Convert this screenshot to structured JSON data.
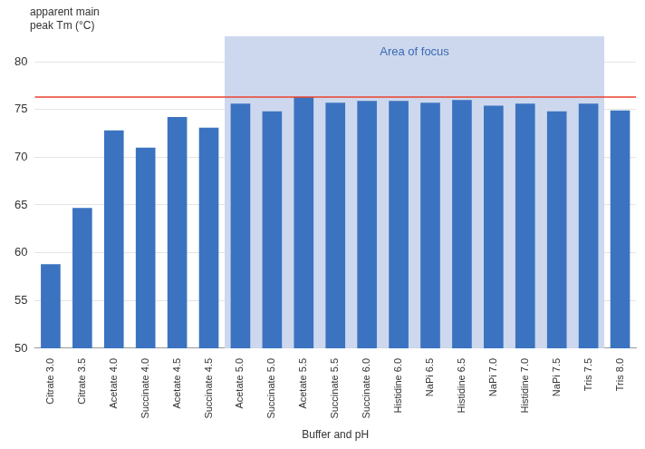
{
  "chart_data": {
    "type": "bar",
    "y_label": "apparent main peak Tm (°C)",
    "x_label": "Buffer and pH",
    "categories": [
      "Citrate 3.0",
      "Citrate 3.5",
      "Acetate 4.0",
      "Succinate 4.0",
      "Acetate 4.5",
      "Succinate 4.5",
      "Acetate 5.0",
      "Succinate 5.0",
      "Acetate 5.5",
      "Succinate 5.5",
      "Succinate 6.0",
      "Histidine 6.0",
      "NaPi 6.5",
      "Histidine 6.5",
      "NaPi 7.0",
      "Histidine 7.0",
      "NaPi 7.5",
      "Tris 7.5",
      "Tris 8.0"
    ],
    "values": [
      58.8,
      64.7,
      72.8,
      71.0,
      74.2,
      73.1,
      75.6,
      74.8,
      76.3,
      75.7,
      75.9,
      75.9,
      75.7,
      76.0,
      75.4,
      75.6,
      74.8,
      75.6,
      74.9
    ],
    "color": "#3b73c0",
    "ylim": [
      50,
      80
    ],
    "yticks": [
      50,
      55,
      60,
      65,
      70,
      75,
      80
    ],
    "grid": true,
    "annotations": [
      {
        "type": "band",
        "label": "Area of focus",
        "from": "Acetate 5.0",
        "to": "Tris 7.5",
        "color": "#cdd8ee"
      },
      {
        "type": "line",
        "value": 76.3,
        "color": "#e8432e"
      }
    ]
  }
}
